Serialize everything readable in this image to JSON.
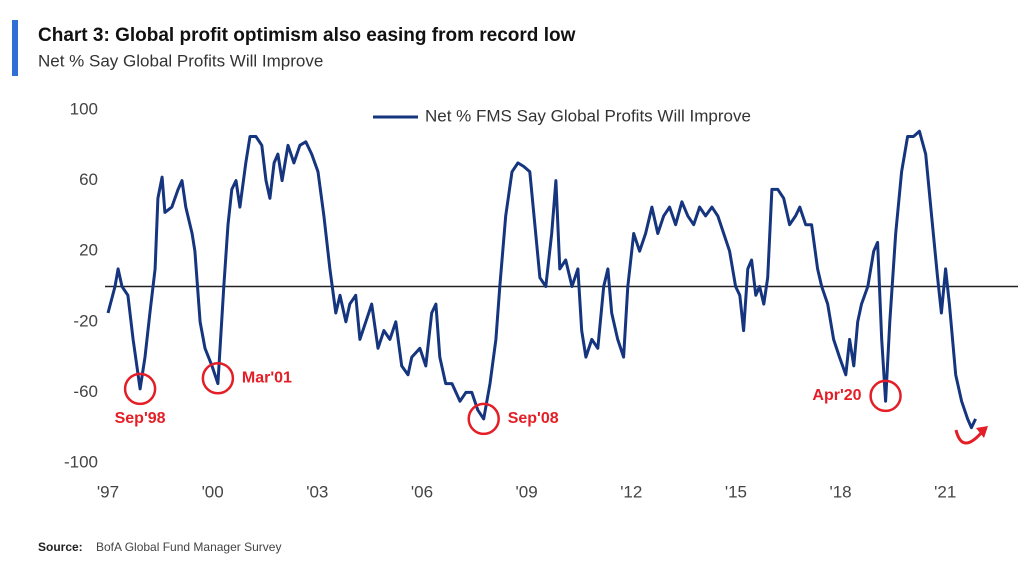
{
  "chart_data": {
    "type": "line",
    "title": "Chart 3: Global profit  optimism also easing from record low",
    "subtitle": "Net % Say Global Profits Will Improve",
    "source_label": "Source:",
    "source": "BofA Global Fund Manager Survey",
    "xlim": [
      1997,
      2023
    ],
    "xticks": [
      {
        "value": 1997,
        "label": "'97"
      },
      {
        "value": 2000,
        "label": "'00"
      },
      {
        "value": 2003,
        "label": "'03"
      },
      {
        "value": 2006,
        "label": "'06"
      },
      {
        "value": 2009,
        "label": "'09"
      },
      {
        "value": 2012,
        "label": "'12"
      },
      {
        "value": 2015,
        "label": "'15"
      },
      {
        "value": 2018,
        "label": "'18"
      },
      {
        "value": 2021,
        "label": "'21"
      }
    ],
    "ylim": [
      -100,
      100
    ],
    "yticks": [
      -100,
      -60,
      -20,
      20,
      60,
      100
    ],
    "reference_line": 0,
    "x": [
      1997.0,
      1997.2,
      1997.29,
      1997.4,
      1997.57,
      1997.72,
      1997.92,
      1998.06,
      1998.2,
      1998.35,
      1998.43,
      1998.55,
      1998.63,
      1998.83,
      1999.01,
      1999.12,
      1999.23,
      1999.41,
      1999.49,
      1999.64,
      1999.78,
      1999.98,
      2000.15,
      2000.32,
      2000.44,
      2000.55,
      2000.67,
      2000.78,
      2000.95,
      2001.07,
      2001.24,
      2001.41,
      2001.53,
      2001.64,
      2001.76,
      2001.87,
      2001.99,
      2002.16,
      2002.33,
      2002.5,
      2002.67,
      2002.84,
      2003.02,
      2003.19,
      2003.36,
      2003.53,
      2003.65,
      2003.82,
      2003.93,
      2004.1,
      2004.22,
      2004.39,
      2004.56,
      2004.74,
      2004.91,
      2005.08,
      2005.25,
      2005.42,
      2005.6,
      2005.71,
      2005.94,
      2006.11,
      2006.28,
      2006.4,
      2006.51,
      2006.68,
      2006.86,
      2007.09,
      2007.26,
      2007.43,
      2007.6,
      2007.77,
      2007.95,
      2008.12,
      2008.23,
      2008.4,
      2008.58,
      2008.75,
      2008.92,
      2009.09,
      2009.26,
      2009.38,
      2009.55,
      2009.72,
      2009.84,
      2009.95,
      2010.12,
      2010.3,
      2010.47,
      2010.58,
      2010.7,
      2010.87,
      2011.04,
      2011.21,
      2011.33,
      2011.44,
      2011.61,
      2011.78,
      2011.9,
      2012.07,
      2012.24,
      2012.41,
      2012.59,
      2012.76,
      2012.93,
      2013.1,
      2013.27,
      2013.45,
      2013.62,
      2013.79,
      2013.96,
      2014.13,
      2014.31,
      2014.48,
      2014.65,
      2014.82,
      2014.99,
      2015.11,
      2015.22,
      2015.34,
      2015.45,
      2015.57,
      2015.68,
      2015.8,
      2015.91,
      2016.03,
      2016.2,
      2016.37,
      2016.54,
      2016.71,
      2016.83,
      2017.0,
      2017.17,
      2017.34,
      2017.46,
      2017.63,
      2017.8,
      2017.97,
      2018.15,
      2018.26,
      2018.38,
      2018.49,
      2018.6,
      2018.78,
      2018.95,
      2019.06,
      2019.18,
      2019.29,
      2019.41,
      2019.58,
      2019.75,
      2019.92,
      2020.09,
      2020.26,
      2020.44,
      2020.61,
      2020.78,
      2020.89,
      2021.01,
      2021.12,
      2021.3,
      2021.47,
      2021.64,
      2021.75,
      2021.87
    ],
    "series": [
      {
        "name": "Net % FMS Say Global Profits Will Improve",
        "color": "#16357f",
        "values": [
          -15,
          0,
          10,
          0,
          -5,
          -30,
          -58,
          -40,
          -15,
          10,
          50,
          62,
          42,
          45,
          55,
          60,
          45,
          30,
          20,
          -20,
          -35,
          -45,
          -55,
          0,
          35,
          55,
          60,
          45,
          70,
          85,
          85,
          80,
          60,
          50,
          70,
          75,
          60,
          80,
          70,
          80,
          82,
          75,
          65,
          40,
          10,
          -15,
          -5,
          -20,
          -10,
          -5,
          -30,
          -20,
          -10,
          -35,
          -25,
          -30,
          -20,
          -45,
          -50,
          -40,
          -35,
          -45,
          -15,
          -10,
          -40,
          -55,
          -55,
          -65,
          -60,
          -60,
          -70,
          -75,
          -55,
          -30,
          0,
          40,
          65,
          70,
          68,
          65,
          30,
          5,
          0,
          30,
          60,
          10,
          15,
          0,
          10,
          -25,
          -40,
          -30,
          -35,
          0,
          10,
          -15,
          -30,
          -40,
          0,
          30,
          20,
          30,
          45,
          30,
          40,
          45,
          35,
          48,
          40,
          35,
          45,
          40,
          45,
          40,
          30,
          20,
          0,
          -5,
          -25,
          10,
          15,
          -5,
          0,
          -10,
          5,
          55,
          55,
          50,
          35,
          40,
          45,
          35,
          35,
          10,
          0,
          -10,
          -30,
          -40,
          -50,
          -30,
          -45,
          -20,
          -10,
          0,
          20,
          25,
          -30,
          -65,
          -20,
          30,
          65,
          85,
          85,
          88,
          75,
          40,
          5,
          -15,
          10,
          -10,
          -50,
          -65,
          -75,
          -80,
          -75
        ]
      }
    ],
    "annotations": [
      {
        "text": "Sep'98",
        "x": 1997.92,
        "y": -58,
        "position": "below"
      },
      {
        "text": "Mar'01",
        "x": 2000.15,
        "y": -52,
        "position": "right"
      },
      {
        "text": "Sep'08",
        "x": 2007.77,
        "y": -75,
        "position": "right"
      },
      {
        "text": "Apr'20",
        "x": 2019.29,
        "y": -62,
        "position": "left"
      }
    ]
  }
}
